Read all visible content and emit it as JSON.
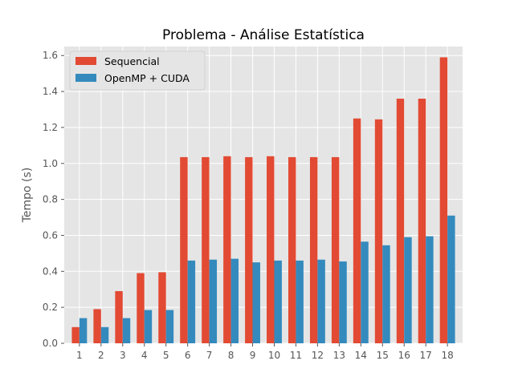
{
  "chart_data": {
    "type": "bar",
    "title": "Problema - Análise Estatística",
    "xlabel": "",
    "ylabel": "Tempo (s)",
    "ylim": [
      0,
      1.65
    ],
    "yticks": [
      "0.0",
      "0.2",
      "0.4",
      "0.6",
      "0.8",
      "1.0",
      "1.2",
      "1.4",
      "1.6"
    ],
    "categories": [
      "1",
      "2",
      "3",
      "4",
      "5",
      "6",
      "7",
      "8",
      "9",
      "10",
      "11",
      "12",
      "13",
      "14",
      "15",
      "16",
      "17",
      "18"
    ],
    "series": [
      {
        "name": "Sequencial",
        "color": "#E24A33",
        "values": [
          0.09,
          0.19,
          0.29,
          0.39,
          0.395,
          1.035,
          1.035,
          1.04,
          1.035,
          1.04,
          1.035,
          1.035,
          1.035,
          1.25,
          1.245,
          1.36,
          1.36,
          1.59
        ]
      },
      {
        "name": "OpenMP + CUDA",
        "color": "#348ABD",
        "values": [
          0.14,
          0.09,
          0.14,
          0.185,
          0.185,
          0.46,
          0.465,
          0.47,
          0.45,
          0.46,
          0.46,
          0.465,
          0.455,
          0.565,
          0.545,
          0.59,
          0.595,
          0.71
        ]
      }
    ],
    "grid": true,
    "legend_position": "top-left"
  }
}
